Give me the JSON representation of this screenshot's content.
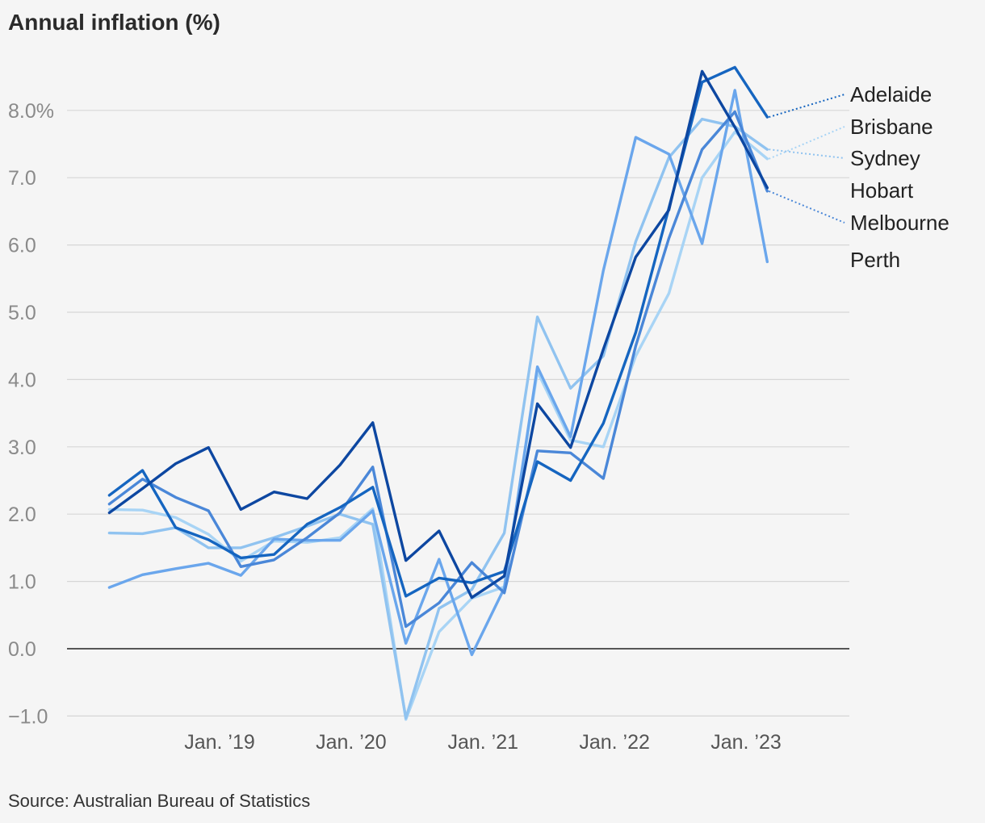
{
  "title": "Annual inflation (%)",
  "source": "Source: Australian Bureau of Statistics",
  "chart_data": {
    "type": "line",
    "x": [
      "2018-03-01",
      "2018-06-01",
      "2018-09-01",
      "2018-12-01",
      "2019-03-01",
      "2019-06-01",
      "2019-09-01",
      "2019-12-01",
      "2020-03-01",
      "2020-06-01",
      "2020-09-01",
      "2020-12-01",
      "2021-03-01",
      "2021-06-01",
      "2021-09-01",
      "2021-12-01",
      "2022-03-01",
      "2022-06-01",
      "2022-09-01",
      "2022-12-01",
      "2023-03-01"
    ],
    "x_ticks": [
      {
        "date": "2019-01-01",
        "label": "Jan. ’19"
      },
      {
        "date": "2020-01-01",
        "label": "Jan. ’20"
      },
      {
        "date": "2021-01-01",
        "label": "Jan. ’21"
      },
      {
        "date": "2022-01-01",
        "label": "Jan. ’22"
      },
      {
        "date": "2023-01-01",
        "label": "Jan. ’23"
      }
    ],
    "y_ticks": [
      {
        "value": -1,
        "label": "−1.0"
      },
      {
        "value": 0,
        "label": "0.0"
      },
      {
        "value": 1,
        "label": "1.0"
      },
      {
        "value": 2,
        "label": "2.0"
      },
      {
        "value": 3,
        "label": "3.0"
      },
      {
        "value": 4,
        "label": "4.0"
      },
      {
        "value": 5,
        "label": "5.0"
      },
      {
        "value": 6,
        "label": "6.0"
      },
      {
        "value": 7,
        "label": "7.0"
      },
      {
        "value": 8,
        "label": "8.0%"
      }
    ],
    "ylim": [
      -1.1,
      8.8
    ],
    "grid": true,
    "legend": "direct labels right",
    "series": [
      {
        "name": "Adelaide",
        "color": "#1565c0",
        "label_value": 8.2,
        "values": [
          2.28,
          2.65,
          1.8,
          1.62,
          1.35,
          1.4,
          1.85,
          2.1,
          2.4,
          0.78,
          1.05,
          0.98,
          1.15,
          2.78,
          2.5,
          3.35,
          4.7,
          6.55,
          8.42,
          8.64,
          7.9
        ]
      },
      {
        "name": "Brisbane",
        "color": "#a8d4f5",
        "label_value": 7.7,
        "values": [
          2.07,
          2.06,
          1.95,
          1.7,
          1.3,
          1.6,
          1.58,
          1.65,
          2.08,
          -1.05,
          0.25,
          0.75,
          0.92,
          4.12,
          3.1,
          3.0,
          4.35,
          5.28,
          7.0,
          7.68,
          7.28
        ]
      },
      {
        "name": "Sydney",
        "color": "#90c3f0",
        "label_value": 7.3,
        "values": [
          1.72,
          1.71,
          1.8,
          1.5,
          1.5,
          1.65,
          1.82,
          2.0,
          1.85,
          -1.03,
          0.6,
          0.88,
          1.72,
          4.93,
          3.87,
          4.35,
          6.05,
          7.3,
          7.87,
          7.76,
          7.42
        ]
      },
      {
        "name": "Hobart",
        "color": "#0d47a1",
        "label_value": 6.85,
        "values": [
          2.02,
          2.38,
          2.75,
          2.99,
          2.07,
          2.33,
          2.23,
          2.73,
          3.36,
          1.31,
          1.75,
          0.76,
          1.08,
          3.64,
          2.99,
          4.45,
          5.82,
          6.52,
          8.58,
          7.75,
          6.85
        ]
      },
      {
        "name": "Melbourne",
        "color": "#4a87d8",
        "label_value": 6.3,
        "values": [
          2.15,
          2.52,
          2.25,
          2.05,
          1.22,
          1.32,
          1.65,
          2.02,
          2.7,
          0.33,
          0.68,
          1.28,
          0.83,
          2.94,
          2.91,
          2.53,
          4.5,
          6.1,
          7.42,
          7.98,
          6.8
        ]
      },
      {
        "name": "Perth",
        "color": "#6aa6ec",
        "label_value": 5.75,
        "values": [
          0.91,
          1.1,
          1.19,
          1.27,
          1.09,
          1.63,
          1.61,
          1.61,
          2.05,
          0.08,
          1.33,
          -0.09,
          0.9,
          4.19,
          3.15,
          5.62,
          7.6,
          7.35,
          6.02,
          8.3,
          5.75
        ]
      }
    ]
  }
}
